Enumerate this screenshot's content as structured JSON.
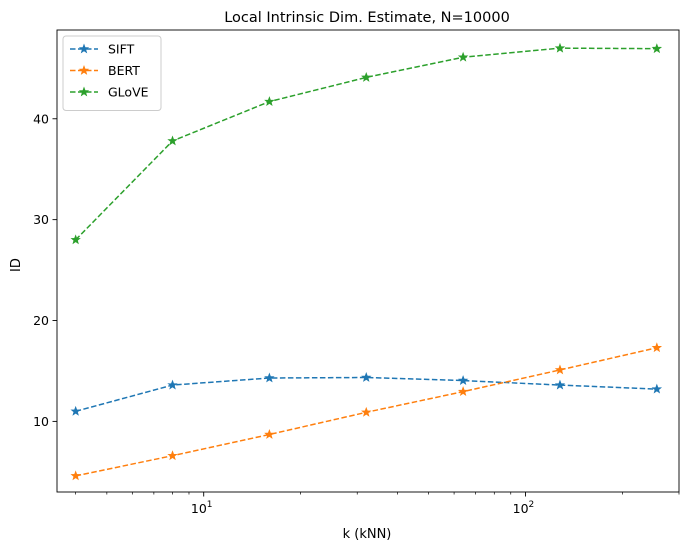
{
  "chart_data": {
    "type": "line",
    "title": "Local Intrinsic Dim. Estimate, N=10000",
    "xlabel": "k (kNN)",
    "ylabel": "ID",
    "xscale": "log",
    "xlim": [
      3.5,
      300
    ],
    "ylim": [
      3.0,
      48.8
    ],
    "x": [
      4,
      8,
      16,
      32,
      64,
      128,
      256
    ],
    "x_major_ticks": [
      {
        "value": 10,
        "base": "10",
        "exp": "1"
      },
      {
        "value": 100,
        "base": "10",
        "exp": "2"
      }
    ],
    "x_minor_ticks": [
      4,
      5,
      6,
      7,
      8,
      9,
      20,
      30,
      40,
      50,
      60,
      70,
      80,
      90,
      200,
      300
    ],
    "y_ticks": [
      {
        "value": 10,
        "label": "10"
      },
      {
        "value": 20,
        "label": "20"
      },
      {
        "value": 30,
        "label": "30"
      },
      {
        "value": 40,
        "label": "40"
      }
    ],
    "grid": false,
    "legend_position": "top-left",
    "marker": "star",
    "linestyle": "dashed",
    "series": [
      {
        "name": "SIFT",
        "color": "#1f77b4",
        "values": [
          11.0,
          13.6,
          14.3,
          14.35,
          14.05,
          13.6,
          13.2
        ]
      },
      {
        "name": "BERT",
        "color": "#ff7f0e",
        "values": [
          4.6,
          6.6,
          8.7,
          10.9,
          12.95,
          15.1,
          17.3
        ]
      },
      {
        "name": "GLoVE",
        "color": "#2ca02c",
        "values": [
          28.0,
          37.8,
          41.7,
          44.1,
          46.1,
          47.0,
          46.95
        ]
      }
    ]
  }
}
